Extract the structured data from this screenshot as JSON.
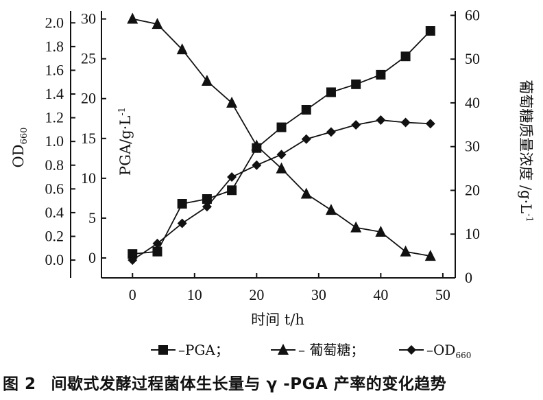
{
  "caption": {
    "label": "图 2",
    "text": "间歇式发酵过程菌体生长量与 γ -PGA 产率的变化趋势"
  },
  "chart_data": {
    "type": "line",
    "xlabel": "时间 t/h",
    "x_ticks": [
      "0",
      "10",
      "20",
      "30",
      "40",
      "50"
    ],
    "xlim": [
      -5,
      52
    ],
    "axes": {
      "od": {
        "label": "OD",
        "label_sub": "660",
        "ylim": [
          -0.15,
          2.1
        ],
        "ticks": [
          "0.0",
          "0.2",
          "0.4",
          "0.6",
          "0.8",
          "1.0",
          "1.2",
          "1.4",
          "1.6",
          "1.8",
          "2.0"
        ]
      },
      "pga": {
        "label": "PGA/g·L",
        "label_sup": "-1",
        "ylim": [
          -2.5,
          31
        ],
        "ticks": [
          "0",
          "5",
          "10",
          "15",
          "20",
          "25",
          "30"
        ]
      },
      "glucose": {
        "label": "葡萄糖质量浓度 /g·L",
        "label_sup": "-1",
        "ylim": [
          0,
          61
        ],
        "ticks": [
          "0",
          "10",
          "20",
          "30",
          "40",
          "50",
          "60"
        ]
      }
    },
    "series": [
      {
        "name": "PGA",
        "axis": "pga",
        "marker": "square",
        "x": [
          0,
          4,
          8,
          12,
          16,
          20,
          24,
          28,
          32,
          36,
          40,
          44,
          48
        ],
        "y": [
          0.5,
          0.8,
          6.8,
          7.4,
          8.5,
          13.8,
          16.4,
          18.6,
          20.8,
          21.8,
          23.0,
          25.3,
          28.5
        ]
      },
      {
        "name": "葡萄糖",
        "axis": "glucose",
        "marker": "triangle",
        "x": [
          0,
          4,
          8,
          12,
          16,
          20,
          24,
          28,
          32,
          36,
          40,
          44,
          48
        ],
        "y": [
          59.2,
          58.0,
          52.2,
          45.0,
          40.0,
          30.2,
          25.0,
          19.2,
          15.5,
          11.5,
          10.5,
          6.0,
          5.0
        ]
      },
      {
        "name": "OD660",
        "axis": "od",
        "marker": "diamond",
        "x": [
          0,
          4,
          8,
          12,
          16,
          20,
          24,
          28,
          32,
          36,
          40,
          44,
          48
        ],
        "y": [
          0.0,
          0.14,
          0.31,
          0.45,
          0.7,
          0.8,
          0.89,
          1.02,
          1.08,
          1.14,
          1.18,
          1.16,
          1.15
        ]
      }
    ],
    "legend": {
      "items": [
        {
          "marker": "square",
          "prefix": "–",
          "text": "–PGA；"
        },
        {
          "marker": "triangle",
          "prefix": "–",
          "text": "– 葡萄糖；"
        },
        {
          "marker": "diamond",
          "prefix": "–",
          "text": "–OD",
          "sub": "660"
        }
      ]
    }
  }
}
